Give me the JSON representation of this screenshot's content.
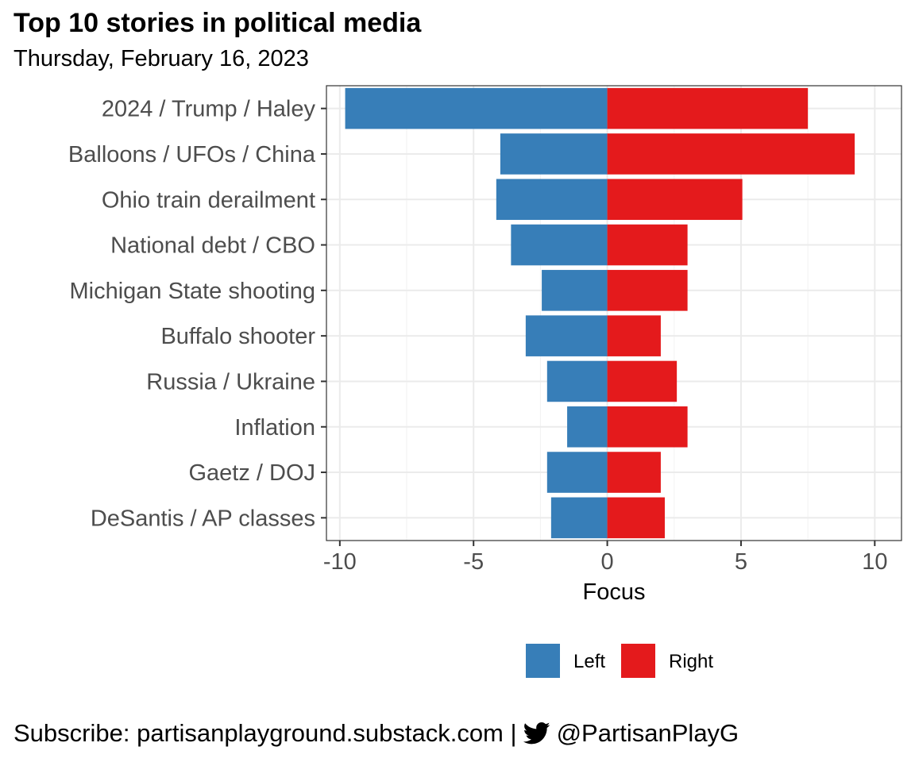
{
  "chart_data": {
    "type": "bar",
    "title": "Top 10 stories in political media",
    "subtitle": "Thursday, February 16, 2023",
    "xlabel": "Focus",
    "ylabel": "",
    "xlim": [
      -10.5,
      11
    ],
    "xticks": [
      -10,
      -5,
      0,
      5,
      10
    ],
    "xtick_labels": [
      "-10",
      "-5",
      "0",
      "5",
      "10"
    ],
    "categories": [
      "2024 / Trump / Haley",
      "Balloons / UFOs / China",
      "Ohio train derailment",
      "National debt / CBO",
      "Michigan State shooting",
      "Buffalo shooter",
      "Russia / Ukraine",
      "Inflation",
      "Gaetz / DOJ",
      "DeSantis / AP classes"
    ],
    "series": [
      {
        "name": "Left",
        "color": "#377eb8",
        "values": [
          -9.8,
          -4.0,
          -4.15,
          -3.6,
          -2.45,
          -3.05,
          -2.25,
          -1.5,
          -2.25,
          -2.1
        ]
      },
      {
        "name": "Right",
        "color": "#e41a1c",
        "values": [
          7.5,
          9.25,
          5.05,
          3.0,
          3.0,
          2.0,
          2.6,
          3.0,
          2.0,
          2.15
        ]
      }
    ],
    "grid": true,
    "legend_position": "bottom"
  },
  "caption": {
    "prefix": "Subscribe: partisanplayground.substack.com |",
    "handle": "@PartisanPlayG",
    "icon": "twitter-bird-icon"
  }
}
